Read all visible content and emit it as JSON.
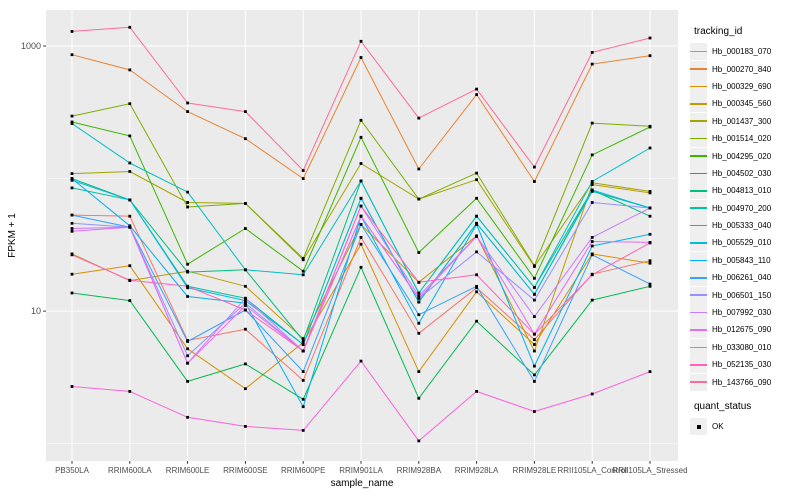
{
  "y_axis": {
    "label": "FPKM + 1"
  },
  "x_axis": {
    "label": "sample_name"
  },
  "legend": {
    "tracking_title": "tracking_id",
    "quant_title": "quant_status",
    "quant_items": [
      {
        "label": "OK",
        "marker_color": "#000000"
      }
    ]
  },
  "chart_data": {
    "type": "line",
    "title": "",
    "xlabel": "sample_name",
    "ylabel": "FPKM + 1",
    "y_scale": "log10",
    "ylim": [
      0.74,
      1870
    ],
    "y_tick_values": [
      1000,
      10
    ],
    "y_tick_labels": [
      "1000",
      "10"
    ],
    "y_minor_gridlines": [
      1,
      100
    ],
    "grid": "on",
    "legend_position": "right",
    "panel_bg": "#EBEBEB",
    "grid_color": "#FFFFFF",
    "point_color": "#000000",
    "tick_label_color": "#4D4D4D",
    "categories": [
      "PB350LA",
      "RRIM600LA",
      "RRIM600LE",
      "RRIM600SE",
      "RRIM600PE",
      "RRIM901LA",
      "RRIM928BA",
      "RRIM928LA",
      "RRIM928LE",
      "RRII105LA_Control",
      "RRII105LA_Stressed"
    ],
    "series": [
      {
        "name": "Hb_000183_070",
        "color": "#F8766D",
        "values": [
          53,
          52,
          6,
          7.3,
          3,
          36,
          6.8,
          15,
          6.1,
          19,
          24
        ]
      },
      {
        "name": "Hb_000270_840",
        "color": "#EA8331",
        "values": [
          860,
          660,
          320,
          200,
          100,
          820,
          118,
          430,
          95,
          730,
          845
        ]
      },
      {
        "name": "Hb_000329_690",
        "color": "#D89000",
        "values": [
          19,
          22,
          5.2,
          2.6,
          5.8,
          32,
          3.5,
          14,
          5.6,
          27,
          23
        ]
      },
      {
        "name": "Hb_000345_560",
        "color": "#C09B00",
        "values": [
          27,
          17,
          20,
          15.4,
          6.2,
          45,
          16.5,
          37,
          5,
          90,
          78
        ]
      },
      {
        "name": "Hb_001437_300",
        "color": "#A3A500",
        "values": [
          109,
          113,
          66,
          65,
          24.4,
          130,
          70,
          98,
          21.7,
          93,
          80
        ]
      },
      {
        "name": "Hb_001514_020",
        "color": "#7CAE00",
        "values": [
          296,
          367,
          61,
          65,
          25,
          275,
          70,
          110,
          22,
          262,
          248
        ]
      },
      {
        "name": "Hb_004295_020",
        "color": "#39B600",
        "values": [
          267,
          210,
          22.6,
          42,
          20,
          205,
          27.7,
          71,
          17.7,
          151,
          245
        ]
      },
      {
        "name": "Hb_004502_030",
        "color": "#00BB4E",
        "values": [
          13.7,
          12,
          2.95,
          4,
          2.16,
          21.4,
          2.2,
          8.4,
          3.3,
          12.1,
          15.4
        ]
      },
      {
        "name": "Hb_004813_010",
        "color": "#00BF7D",
        "values": [
          100,
          69,
          19.7,
          20.5,
          6,
          96,
          13.7,
          52,
          15.1,
          82,
          52
        ]
      },
      {
        "name": "Hb_004970_200",
        "color": "#00C1A3",
        "values": [
          85,
          69,
          15.4,
          12.5,
          5.6,
          71,
          11.7,
          46,
          13.4,
          80,
          60
        ]
      },
      {
        "name": "Hb_005333_040",
        "color": "#00BFC4",
        "values": [
          260,
          131,
          79,
          20.5,
          18.8,
          96,
          13.7,
          52,
          15.1,
          95,
          170
        ]
      },
      {
        "name": "Hb_005529_010",
        "color": "#00BAE0",
        "values": [
          97,
          69,
          15,
          12,
          5.6,
          71,
          11.7,
          46,
          13.4,
          82,
          60
        ]
      },
      {
        "name": "Hb_005843_110",
        "color": "#00B0F6",
        "values": [
          100,
          44,
          12.9,
          11.5,
          1.9,
          52,
          8.1,
          45,
          3.85,
          31,
          38
        ]
      },
      {
        "name": "Hb_006261_040",
        "color": "#35A2FF",
        "values": [
          53,
          43,
          5.9,
          10.2,
          3.5,
          45,
          9.4,
          15.4,
          2.95,
          26.6,
          16
        ]
      },
      {
        "name": "Hb_006501_150",
        "color": "#9590FF",
        "values": [
          46,
          43,
          4.6,
          11.5,
          5,
          52,
          12.5,
          28,
          12.1,
          66,
          60
        ]
      },
      {
        "name": "Hb_007992_030",
        "color": "#C77CFF",
        "values": [
          42,
          43,
          4.05,
          12.5,
          5,
          62,
          13,
          36.6,
          9.1,
          36,
          60
        ]
      },
      {
        "name": "Hb_012675_090",
        "color": "#E76BF3",
        "values": [
          40,
          43,
          4.05,
          11,
          5,
          52,
          12.5,
          36.6,
          6.7,
          33.5,
          33
        ]
      },
      {
        "name": "Hb_033080_010",
        "color": "#FA62DB",
        "values": [
          2.7,
          2.48,
          1.58,
          1.35,
          1.26,
          4.2,
          1.05,
          2.48,
          1.75,
          2.37,
          3.5
        ]
      },
      {
        "name": "Hb_052135_030",
        "color": "#FF62BC",
        "values": [
          26.6,
          17.1,
          15.4,
          10.2,
          5,
          62,
          16.5,
          18.8,
          6.7,
          18.8,
          32.7
        ]
      },
      {
        "name": "Hb_143766_090",
        "color": "#FF6A98",
        "values": [
          1290,
          1385,
          372,
          320,
          115,
          1085,
          286,
          473,
          122,
          896,
          1150
        ]
      }
    ]
  }
}
